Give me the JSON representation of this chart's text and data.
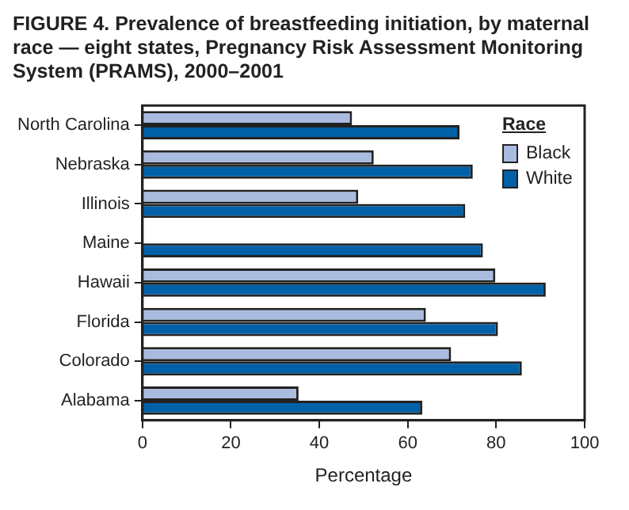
{
  "chart_data": {
    "type": "bar",
    "orientation": "horizontal",
    "title": "FIGURE 4. Prevalence of breastfeeding initiation, by maternal race — eight states, Pregnancy Risk Assessment Monitoring System (PRAMS), 2000–2001",
    "xlabel": "Percentage",
    "legend_title": "Race",
    "legend": "top right",
    "grid": false,
    "categories": [
      "North Carolina",
      "Nebraska",
      "Illinois",
      "Maine",
      "Hawaii",
      "Florida",
      "Colorado",
      "Alabama"
    ],
    "series": [
      {
        "name": "Black",
        "color": "#a9bbdf",
        "values": [
          47.4,
          52.3,
          48.8,
          null,
          79.8,
          64.1,
          69.8,
          35.3
        ]
      },
      {
        "name": "White",
        "color": "#0060a8",
        "values": [
          71.7,
          74.7,
          73.0,
          77.0,
          91.2,
          80.4,
          85.8,
          63.3
        ]
      }
    ],
    "xlim": [
      0,
      100
    ],
    "xticks": [
      0,
      20,
      40,
      60,
      80,
      100
    ]
  }
}
